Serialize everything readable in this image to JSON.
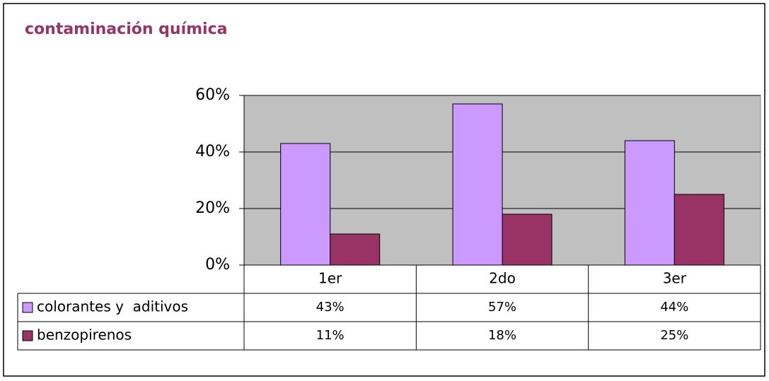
{
  "chart_data": {
    "type": "bar",
    "title": "contaminación química",
    "categories": [
      "1er",
      "2do",
      "3er"
    ],
    "series": [
      {
        "name": "colorantes y  aditivos",
        "color": "#cc99ff",
        "values": [
          43,
          57,
          44
        ],
        "value_labels": [
          "43%",
          "57%",
          "44%"
        ]
      },
      {
        "name": "benzopirenos",
        "color": "#993366",
        "values": [
          11,
          18,
          25
        ],
        "value_labels": [
          "11%",
          "18%",
          "25%"
        ]
      }
    ],
    "ylim": [
      0,
      60
    ],
    "yticks": [
      {
        "value": 0,
        "label": "0%"
      },
      {
        "value": 20,
        "label": "20%"
      },
      {
        "value": 40,
        "label": "40%"
      },
      {
        "value": 60,
        "label": "60%"
      }
    ],
    "grid": true
  }
}
